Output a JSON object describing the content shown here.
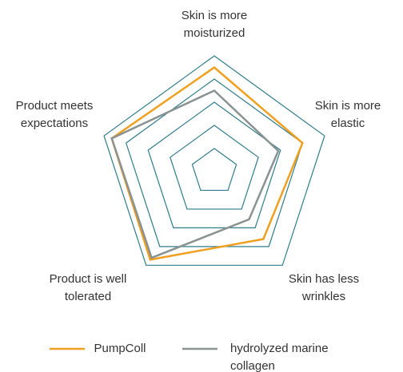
{
  "chart_data": {
    "type": "radar",
    "categories": [
      "Skin is more\nmoisturized",
      "Skin is more\nelastic",
      "Skin has less\nwrinkles",
      "Product is well\ntolerated",
      "Product meets\nexpectations"
    ],
    "rlim": [
      0,
      5
    ],
    "rticks": [
      1,
      2,
      3,
      4,
      5
    ],
    "grid": true,
    "grid_color": "#2e7d8c",
    "series": [
      {
        "name": "PumpColl",
        "color": "#f0a020",
        "values": [
          4.5,
          4.0,
          3.6,
          4.7,
          4.65
        ]
      },
      {
        "name": "hydrolyzed marine\ncollagen",
        "color": "#8a9292",
        "values": [
          3.5,
          2.9,
          2.55,
          4.6,
          4.65
        ]
      }
    ]
  }
}
